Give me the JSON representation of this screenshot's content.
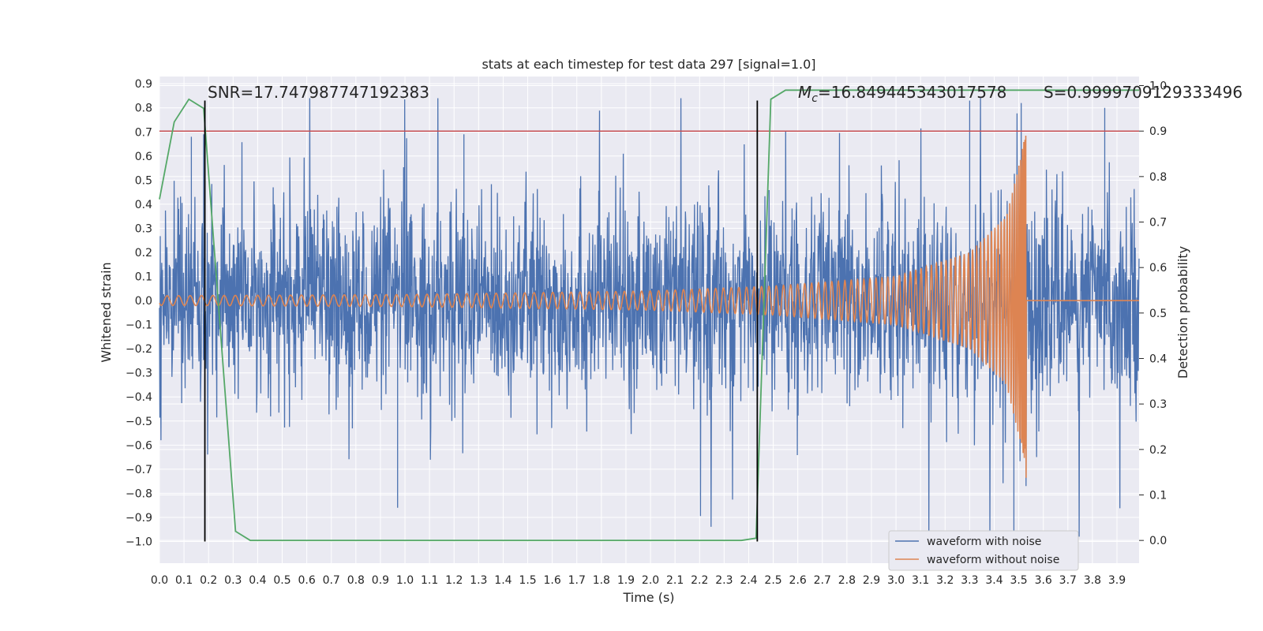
{
  "chart_data": {
    "type": "line",
    "title": "stats at each timestep for test data 297 [signal=1.0]",
    "xlabel": "Time (s)",
    "ylabel": "Whitened strain",
    "y2label": "Detection probability",
    "xlim": [
      0.0,
      3.99
    ],
    "ylim": [
      -1.09,
      0.93
    ],
    "y2lim": [
      -0.05,
      1.02
    ],
    "x_ticks": [
      "0.0",
      "0.1",
      "0.2",
      "0.3",
      "0.4",
      "0.5",
      "0.6",
      "0.7",
      "0.8",
      "0.9",
      "1.0",
      "1.1",
      "1.2",
      "1.3",
      "1.4",
      "1.5",
      "1.6",
      "1.7",
      "1.8",
      "1.9",
      "2.0",
      "2.1",
      "2.2",
      "2.3",
      "2.4",
      "2.5",
      "2.6",
      "2.7",
      "2.8",
      "2.9",
      "3.0",
      "3.1",
      "3.2",
      "3.3",
      "3.4",
      "3.5",
      "3.6",
      "3.7",
      "3.8",
      "3.9"
    ],
    "y_ticks": [
      "0.9",
      "0.8",
      "0.7",
      "0.6",
      "0.5",
      "0.4",
      "0.3",
      "0.2",
      "0.1",
      "0.0",
      "−0.1",
      "−0.2",
      "−0.3",
      "−0.4",
      "−0.5",
      "−0.6",
      "−0.7",
      "−0.8",
      "−0.9",
      "−1.0"
    ],
    "y2_ticks": [
      "1.0",
      "0.9",
      "0.8",
      "0.7",
      "0.6",
      "0.5",
      "0.4",
      "0.3",
      "0.2",
      "0.1",
      "0.0"
    ],
    "grid": true,
    "legend_position": "bottom-right",
    "series": [
      {
        "name": "waveform with noise",
        "color": "#4c72b0",
        "axis": "left",
        "noise_amplitude_rms": 0.2,
        "notable_peaks": [
          [
            0.13,
            0.68
          ],
          [
            0.18,
            0.69
          ],
          [
            0.97,
            -0.86
          ],
          [
            1.24,
            0.69
          ],
          [
            3.3,
            0.83
          ],
          [
            3.48,
            -0.97
          ],
          [
            3.51,
            0.82
          ],
          [
            3.85,
            0.8
          ]
        ]
      },
      {
        "name": "waveform without noise",
        "color": "#dd8452",
        "axis": "left",
        "amplitude_points": [
          [
            0.0,
            0.02
          ],
          [
            1.0,
            0.025
          ],
          [
            2.0,
            0.04
          ],
          [
            2.5,
            0.06
          ],
          [
            3.0,
            0.1
          ],
          [
            3.3,
            0.2
          ],
          [
            3.45,
            0.35
          ],
          [
            3.51,
            0.6
          ],
          [
            3.53,
            0.75
          ]
        ],
        "merger_time": 3.53,
        "post_merger_value": 0.0
      },
      {
        "name": "detection probability",
        "color": "#55a868",
        "axis": "right",
        "x": [
          0.0,
          0.06,
          0.12,
          0.18,
          0.31,
          0.37,
          2.37,
          2.43,
          2.49,
          2.55,
          3.99
        ],
        "y": [
          0.75,
          0.92,
          0.97,
          0.95,
          0.02,
          0.0,
          0.0,
          0.005,
          0.97,
          0.99,
          0.99
        ]
      }
    ],
    "threshold": {
      "value": 0.9,
      "axis": "right",
      "color": "#c44e52"
    },
    "markers": [
      {
        "x": 0.185,
        "ymin": -1.0,
        "ymax": 0.83
      },
      {
        "x": 2.435,
        "ymin": -1.0,
        "ymax": 0.83
      }
    ],
    "annotations": {
      "snr": "SNR=17.747987747192383",
      "mc_symbol": "M",
      "mc_sub": "c",
      "mc_value": "=16.849445343017578",
      "s": "S=0.9999709129333496"
    }
  }
}
